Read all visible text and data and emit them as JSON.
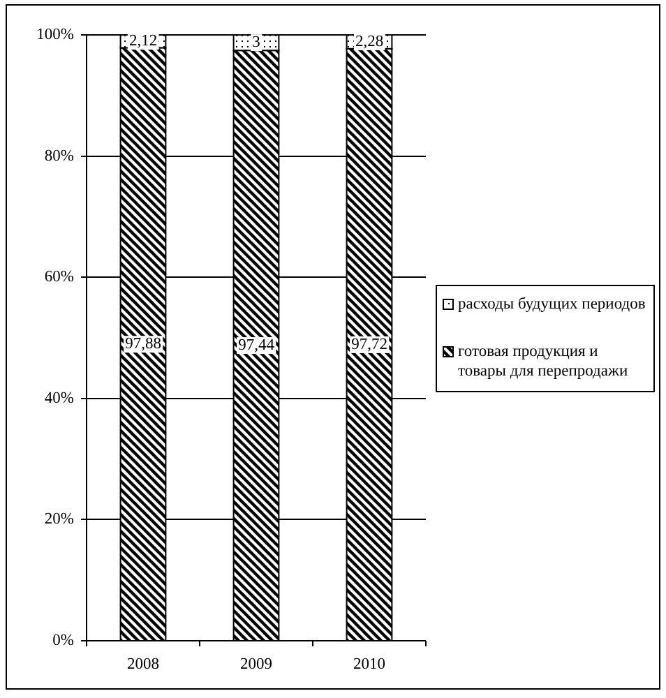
{
  "chart_data": {
    "type": "bar",
    "stacked": true,
    "categories": [
      "2008",
      "2009",
      "2010"
    ],
    "series": [
      {
        "name": "готовая продукция и товары для перепродажи",
        "color": "#000000",
        "values": [
          97.88,
          97.44,
          97.72
        ],
        "value_labels": [
          "97,88",
          "97,44",
          "97,72"
        ]
      },
      {
        "name": "расходы будущих периодов",
        "color": "#000000",
        "values": [
          2.12,
          2.56,
          2.28
        ],
        "value_labels": [
          "2,12",
          "3",
          "2,28"
        ]
      }
    ],
    "ylim": [
      0,
      100
    ],
    "yticks": [
      {
        "value": 0,
        "label": "0%"
      },
      {
        "value": 20,
        "label": "20%"
      },
      {
        "value": 40,
        "label": "40%"
      },
      {
        "value": 60,
        "label": "60%"
      },
      {
        "value": 80,
        "label": "80%"
      },
      {
        "value": 100,
        "label": "100%"
      }
    ],
    "grid": "y",
    "legend": "right"
  }
}
